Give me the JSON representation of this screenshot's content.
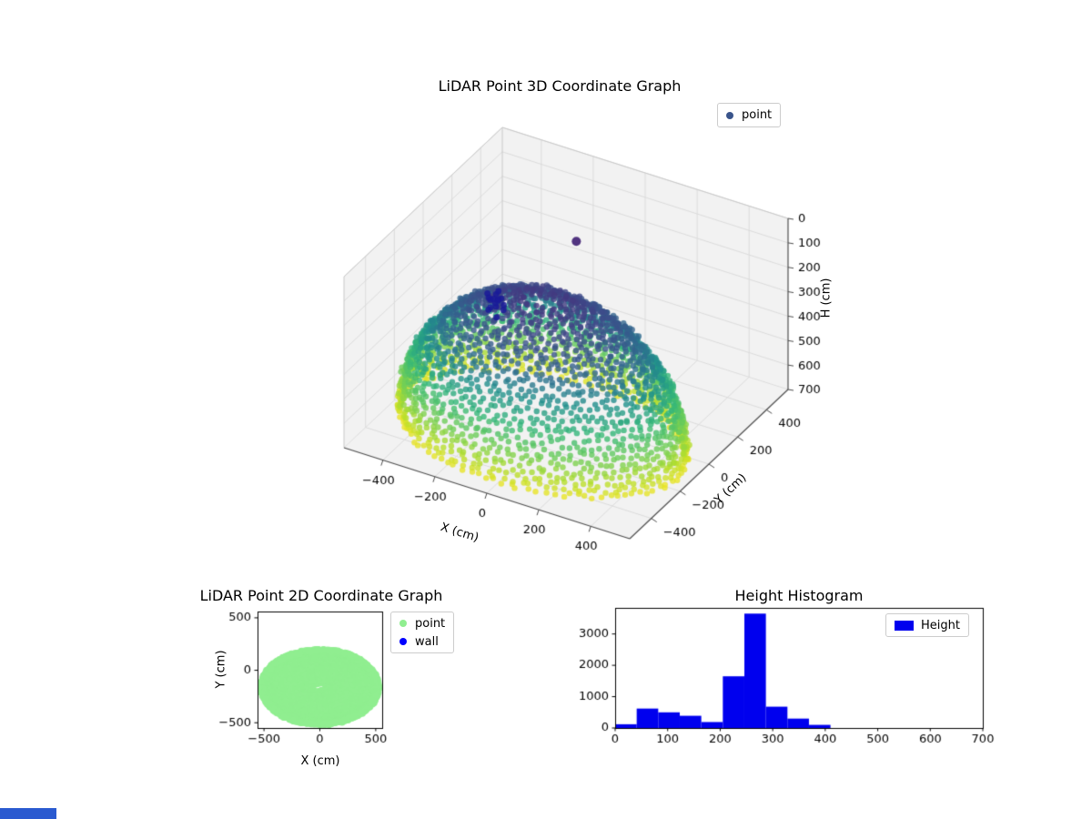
{
  "figure": {
    "background": "#ffffff"
  },
  "taskbar_fragment": {
    "color": "#2a5ad0"
  },
  "chart_data": [
    {
      "id": "plot3d",
      "type": "scatter3d",
      "title": "LiDAR Point 3D Coordinate Graph",
      "xlabel": "X (cm)",
      "ylabel": "Y (cm)",
      "zlabel": "H (cm)",
      "xticks": [
        -400,
        -200,
        0,
        200,
        400
      ],
      "yticks": [
        -400,
        -200,
        0,
        200,
        400
      ],
      "zticks": [
        0,
        100,
        200,
        300,
        400,
        500,
        600,
        700
      ],
      "xlim": [
        -550,
        550
      ],
      "ylim": [
        -550,
        550
      ],
      "zlim": [
        0,
        700
      ],
      "z_axis_inverted": true,
      "view": {
        "elev": 30,
        "azim": -60
      },
      "colormap": "viridis",
      "legend": [
        {
          "label": "point",
          "color": "#3a548b"
        }
      ],
      "dome": {
        "center_x": 0,
        "center_y": -160,
        "radius_x": 520,
        "radius_y": 350,
        "radius_z": 540,
        "h_base": 670,
        "rings": 34,
        "ring_max_points": 104,
        "phi_min_deg": 7,
        "phi_max_deg": 90,
        "jitter_cm": 10,
        "seed": 42
      },
      "wall_cluster": {
        "center_x": -300,
        "center_y": 50,
        "center_h": 350,
        "count": 16,
        "spread_cm": 45,
        "color": "#1a1a99"
      },
      "apex_outlier": {
        "x": -60,
        "y": 180,
        "h": 95
      }
    },
    {
      "id": "plot2d",
      "type": "scatter",
      "title": "LiDAR Point 2D Coordinate Graph",
      "xlabel": "X (cm)",
      "ylabel": "Y (cm)",
      "xticks": [
        -500,
        0,
        500
      ],
      "yticks": [
        -500,
        0,
        500
      ],
      "xlim": [
        -558,
        558
      ],
      "ylim": [
        -550,
        560
      ],
      "legend": [
        {
          "label": "point",
          "color": "#90ee90"
        },
        {
          "label": "wall",
          "color": "#0000ff"
        }
      ]
    },
    {
      "id": "histogram",
      "type": "bar",
      "title": "Height Histogram",
      "legend": [
        {
          "label": "Height",
          "color": "#0000ee"
        }
      ],
      "bar_color": "#0000ee",
      "bin_edges": [
        0,
        41,
        82,
        123,
        164,
        205,
        246,
        287,
        328,
        369,
        410
      ],
      "counts": [
        120,
        620,
        500,
        390,
        190,
        1650,
        3650,
        680,
        300,
        100
      ],
      "xticks": [
        0,
        100,
        200,
        300,
        400,
        500,
        600,
        700
      ],
      "yticks": [
        0,
        1000,
        2000,
        3000
      ],
      "xlim": [
        0,
        700
      ],
      "ylim": [
        0,
        3833
      ]
    }
  ]
}
